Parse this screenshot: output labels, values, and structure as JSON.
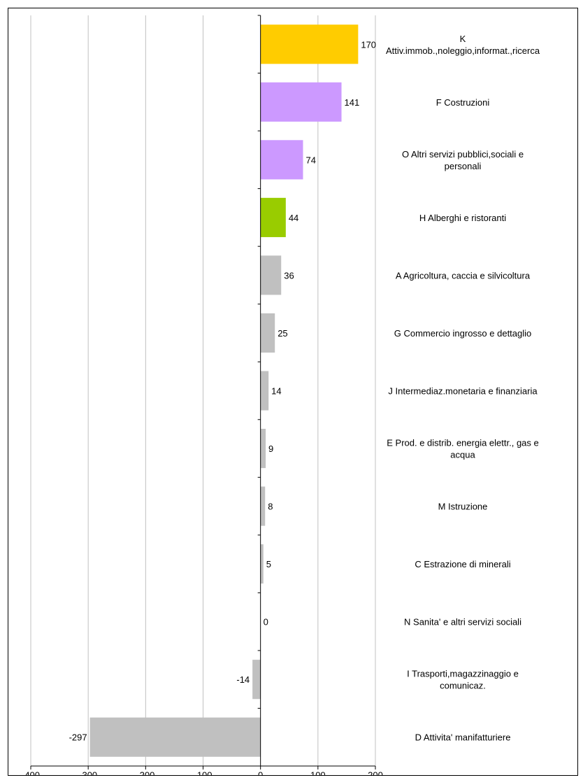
{
  "chart_data": {
    "type": "bar",
    "orientation": "horizontal",
    "xlim": [
      -400,
      200
    ],
    "xticks": [
      -400,
      -300,
      -200,
      -100,
      0,
      100,
      200
    ],
    "grid": "vertical",
    "categories": [
      "K Attiv.immob.,noleggio,informat.,ricerca",
      "F Costruzioni",
      "O Altri servizi pubblici,sociali e personali",
      "H Alberghi e ristoranti",
      "A Agricoltura, caccia e silvicoltura",
      "G Commercio ingrosso e dettaglio",
      "J Intermediaz.monetaria e finanziaria",
      "E Prod. e distrib. energia elettr., gas e acqua",
      "M Istruzione",
      "C Estrazione di minerali",
      "N Sanita' e altri servizi sociali",
      "I Trasporti,magazzinaggio e comunicaz.",
      "D Attivita' manifatturiere"
    ],
    "category_lines": [
      [
        "K",
        "Attiv.immob.,noleggio,informat.,ricerca"
      ],
      [
        "F Costruzioni"
      ],
      [
        "O Altri servizi pubblici,sociali e",
        "personali"
      ],
      [
        "H Alberghi e ristoranti"
      ],
      [
        "A Agricoltura, caccia e silvicoltura"
      ],
      [
        "G Commercio ingrosso e dettaglio"
      ],
      [
        "J Intermediaz.monetaria e finanziaria"
      ],
      [
        "E Prod. e distrib. energia elettr., gas e",
        "acqua"
      ],
      [
        "M Istruzione"
      ],
      [
        "C Estrazione di minerali"
      ],
      [
        "N Sanita' e altri servizi sociali"
      ],
      [
        "I Trasporti,magazzinaggio e",
        "comunicaz."
      ],
      [
        "D Attivita' manifatturiere"
      ]
    ],
    "values": [
      170,
      141,
      74,
      44,
      36,
      25,
      14,
      9,
      8,
      5,
      0,
      -14,
      -297
    ],
    "value_labels": [
      "170",
      "141",
      "74",
      "44",
      "36",
      "25",
      "14",
      "9",
      "8",
      "5",
      "0",
      "-14",
      "-297"
    ],
    "colors": [
      "#FFCC00",
      "#CC99FF",
      "#CC99FF",
      "#99CC00",
      "#C0C0C0",
      "#C0C0C0",
      "#C0C0C0",
      "#C0C0C0",
      "#C0C0C0",
      "#C0C0C0",
      "#C0C0C0",
      "#C0C0C0",
      "#C0C0C0"
    ],
    "gridline_color": "#C0C0C0"
  }
}
